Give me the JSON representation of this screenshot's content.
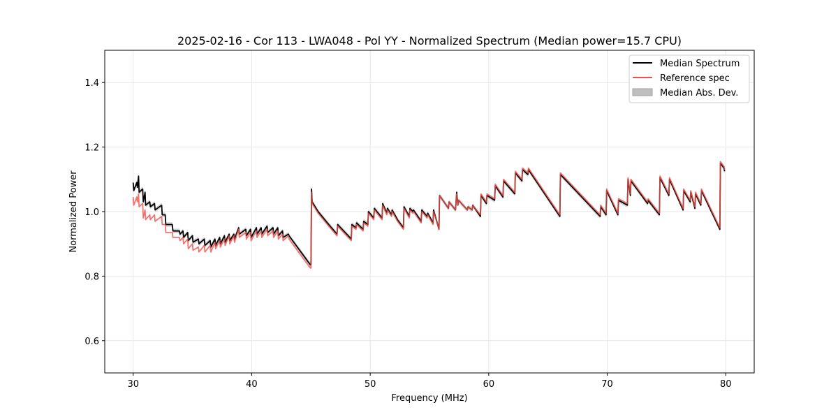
{
  "chart_data": {
    "type": "line",
    "title": "2025-02-16 - Cor 113 - LWA048 - Pol YY - Normalized Spectrum (Median power=15.7 CPU)",
    "xlabel": "Frequency (MHz)",
    "ylabel": "Normalized Power",
    "xlim": [
      27.6,
      82.4
    ],
    "ylim": [
      0.5,
      1.5
    ],
    "xticks": [
      30,
      40,
      50,
      60,
      70,
      80
    ],
    "yticks": [
      0.6,
      0.8,
      1.0,
      1.2,
      1.4
    ],
    "grid": true,
    "legend_position": "top-right",
    "mad_band_halfwidth": 0.007,
    "series": [
      {
        "name": "Median Spectrum",
        "color": "#000000",
        "x": [
          30.0,
          30.05,
          30.3,
          30.35,
          30.45,
          30.5,
          30.8,
          30.85,
          31.0,
          31.05,
          31.4,
          31.45,
          31.8,
          31.85,
          32.4,
          32.45,
          32.7,
          32.75,
          33.3,
          33.35,
          33.9,
          33.95,
          34.2,
          34.25,
          34.6,
          34.65,
          35.0,
          35.05,
          35.5,
          35.55,
          36.0,
          36.05,
          36.5,
          36.55,
          36.9,
          36.95,
          37.3,
          37.35,
          37.7,
          37.75,
          38.1,
          38.15,
          38.5,
          38.55,
          38.9,
          38.95,
          39.5,
          39.55,
          39.9,
          39.95,
          40.4,
          40.45,
          40.8,
          40.85,
          41.3,
          41.35,
          41.8,
          41.85,
          42.2,
          42.25,
          42.6,
          42.65,
          43.1,
          43.15,
          44.95,
          45.0,
          45.05,
          45.1,
          45.6,
          46.5,
          47.2,
          47.25,
          48.4,
          48.45,
          48.8,
          48.85,
          49.4,
          49.45,
          49.8,
          49.85,
          50.3,
          50.35,
          51.0,
          51.05,
          51.4,
          51.45,
          51.8,
          51.85,
          52.3,
          52.8,
          52.85,
          53.3,
          53.35,
          53.6,
          53.65,
          54.3,
          54.35,
          54.8,
          54.85,
          55.3,
          55.35,
          55.8,
          55.85,
          56.6,
          56.65,
          57.2,
          57.25,
          57.3,
          57.4,
          57.45,
          58.2,
          58.25,
          58.6,
          58.65,
          59.3,
          59.35,
          59.8,
          59.85,
          60.5,
          60.55,
          61.2,
          61.25,
          62.2,
          62.25,
          62.8,
          62.85,
          63.3,
          63.35,
          66.0,
          66.05,
          69.4,
          69.45,
          69.9,
          69.95,
          70.9,
          70.95,
          71.7,
          71.75,
          71.95,
          72.0,
          73.4,
          73.45,
          74.4,
          74.45,
          75.2,
          75.25,
          76.4,
          76.45,
          77.0,
          77.05,
          77.4,
          77.45,
          77.9,
          77.95,
          79.5,
          79.55,
          79.85,
          79.9
        ],
        "y": [
          1.09,
          1.065,
          1.09,
          1.075,
          1.11,
          1.06,
          1.07,
          1.03,
          1.06,
          1.02,
          1.03,
          1.015,
          1.025,
          1.005,
          1.02,
          0.99,
          0.99,
          0.96,
          0.96,
          0.94,
          0.94,
          0.93,
          0.94,
          0.92,
          0.935,
          0.91,
          0.925,
          0.905,
          0.915,
          0.9,
          0.915,
          0.895,
          0.91,
          0.89,
          0.915,
          0.895,
          0.92,
          0.9,
          0.925,
          0.905,
          0.93,
          0.91,
          0.93,
          0.915,
          0.95,
          0.93,
          0.945,
          0.925,
          0.945,
          0.92,
          0.95,
          0.93,
          0.95,
          0.93,
          0.955,
          0.935,
          0.95,
          0.93,
          0.95,
          0.925,
          0.94,
          0.92,
          0.93,
          0.925,
          0.835,
          0.835,
          1.07,
          1.03,
          1.0,
          0.96,
          0.93,
          0.96,
          0.915,
          0.96,
          0.95,
          0.965,
          0.945,
          0.97,
          0.96,
          1.0,
          0.98,
          1.01,
          0.98,
          1.025,
          0.995,
          1.01,
          0.99,
          1.005,
          0.975,
          0.95,
          1.015,
          0.985,
          1.01,
          1.0,
          1.005,
          0.97,
          1.005,
          0.985,
          0.995,
          0.965,
          1.005,
          0.945,
          1.05,
          1.01,
          1.03,
          1.005,
          1.035,
          1.06,
          1.02,
          1.035,
          1.005,
          1.015,
          1.005,
          1.02,
          0.985,
          1.05,
          1.025,
          1.05,
          1.035,
          1.08,
          1.045,
          1.095,
          1.055,
          1.12,
          1.095,
          1.13,
          1.115,
          1.13,
          0.985,
          1.115,
          0.985,
          1.015,
          0.99,
          1.065,
          0.99,
          1.035,
          1.02,
          1.1,
          1.05,
          1.095,
          1.025,
          1.035,
          0.99,
          1.105,
          1.05,
          1.1,
          1.005,
          1.065,
          1.03,
          1.06,
          1.01,
          1.055,
          1.02,
          1.065,
          0.945,
          1.15,
          1.135,
          1.125
        ]
      },
      {
        "name": "Reference spec",
        "color": "#f0504a",
        "x": [
          30.0,
          30.05,
          30.3,
          30.35,
          30.45,
          30.5,
          30.8,
          30.85,
          31.0,
          31.05,
          31.4,
          31.45,
          31.8,
          31.85,
          32.4,
          32.45,
          32.7,
          32.75,
          33.3,
          33.35,
          33.9,
          33.95,
          34.2,
          34.25,
          34.6,
          34.65,
          35.0,
          35.05,
          35.5,
          35.55,
          36.0,
          36.05,
          36.5,
          36.55,
          36.9,
          36.95,
          37.3,
          37.35,
          37.7,
          37.75,
          38.1,
          38.15,
          38.5,
          38.55,
          38.9,
          38.95,
          39.5,
          39.55,
          39.9,
          39.95,
          40.4,
          40.45,
          40.8,
          40.85,
          41.3,
          41.35,
          41.8,
          41.85,
          42.2,
          42.25,
          42.6,
          42.65,
          43.1,
          43.15,
          44.95,
          45.0,
          45.05,
          45.1,
          45.6,
          46.5,
          47.2,
          47.25,
          48.4,
          48.45,
          48.8,
          48.85,
          49.4,
          49.45,
          49.8,
          49.85,
          50.3,
          50.35,
          51.0,
          51.05,
          51.4,
          51.45,
          51.8,
          51.85,
          52.3,
          52.8,
          52.85,
          53.3,
          53.35,
          53.6,
          53.65,
          54.3,
          54.35,
          54.8,
          54.85,
          55.3,
          55.35,
          55.8,
          55.85,
          56.6,
          56.65,
          57.2,
          57.25,
          57.3,
          57.4,
          57.45,
          58.2,
          58.25,
          58.6,
          58.65,
          59.3,
          59.35,
          59.8,
          59.85,
          60.5,
          60.55,
          61.2,
          61.25,
          62.2,
          62.25,
          62.8,
          62.85,
          63.3,
          63.35,
          66.0,
          66.05,
          69.4,
          69.45,
          69.9,
          69.95,
          70.9,
          70.95,
          71.7,
          71.75,
          71.95,
          72.0,
          73.4,
          73.45,
          74.4,
          74.45,
          75.2,
          75.25,
          76.4,
          76.45,
          77.0,
          77.05,
          77.4,
          77.45,
          77.9,
          77.95,
          79.5,
          79.55,
          79.85,
          79.9
        ],
        "y": [
          1.045,
          1.02,
          1.045,
          1.03,
          1.055,
          1.015,
          1.025,
          0.98,
          1.005,
          0.975,
          0.99,
          0.975,
          0.99,
          0.97,
          0.985,
          0.96,
          0.96,
          0.935,
          0.935,
          0.92,
          0.92,
          0.91,
          0.92,
          0.9,
          0.915,
          0.885,
          0.9,
          0.88,
          0.89,
          0.875,
          0.895,
          0.875,
          0.895,
          0.875,
          0.905,
          0.885,
          0.91,
          0.89,
          0.915,
          0.895,
          0.925,
          0.9,
          0.925,
          0.905,
          0.945,
          0.92,
          0.935,
          0.915,
          0.935,
          0.91,
          0.94,
          0.92,
          0.94,
          0.92,
          0.945,
          0.925,
          0.94,
          0.92,
          0.94,
          0.915,
          0.93,
          0.91,
          0.925,
          0.915,
          0.825,
          0.825,
          1.06,
          1.025,
          0.995,
          0.955,
          0.925,
          0.955,
          0.91,
          0.955,
          0.945,
          0.96,
          0.94,
          0.965,
          0.955,
          0.995,
          0.975,
          1.005,
          0.975,
          1.02,
          0.99,
          1.005,
          0.985,
          1.0,
          0.97,
          0.945,
          1.01,
          0.98,
          1.005,
          0.995,
          1.0,
          0.965,
          1.0,
          0.98,
          0.99,
          0.96,
          1.0,
          0.945,
          1.05,
          1.01,
          1.03,
          1.005,
          1.035,
          1.055,
          1.02,
          1.035,
          1.005,
          1.015,
          1.005,
          1.02,
          0.99,
          1.055,
          1.03,
          1.055,
          1.04,
          1.085,
          1.05,
          1.1,
          1.06,
          1.125,
          1.1,
          1.135,
          1.12,
          1.135,
          0.99,
          1.12,
          0.99,
          1.02,
          0.995,
          1.07,
          0.995,
          1.04,
          1.025,
          1.105,
          1.055,
          1.1,
          1.03,
          1.04,
          0.995,
          1.11,
          1.055,
          1.105,
          1.01,
          1.07,
          1.035,
          1.065,
          1.015,
          1.06,
          1.025,
          1.07,
          0.95,
          1.155,
          1.14,
          1.13
        ]
      }
    ],
    "legend": [
      {
        "label": "Median Spectrum",
        "kind": "line",
        "color": "#000000"
      },
      {
        "label": "Reference spec",
        "kind": "line",
        "color": "#f0504a"
      },
      {
        "label": "Median Abs. Dev.",
        "kind": "patch",
        "color": "#bfbfbf"
      }
    ]
  }
}
